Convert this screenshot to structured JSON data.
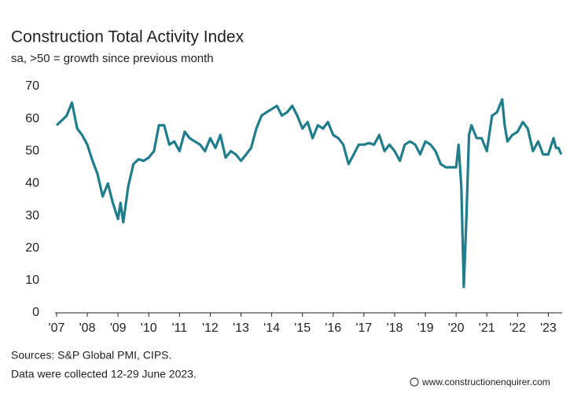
{
  "chart_data": {
    "type": "line",
    "title": "Construction Total Activity Index",
    "subtitle": "sa, >50 = growth since previous month",
    "sources": "Sources: S&P Global PMI, CIPS.",
    "note": "Data were collected 12-29 June 2023.",
    "watermark": "www.constructionenquirer.com",
    "color": "#1f7d8c",
    "grid": false,
    "x": [
      2007.0,
      2007.17,
      2007.33,
      2007.5,
      2007.67,
      2007.83,
      2008.0,
      2008.17,
      2008.33,
      2008.5,
      2008.67,
      2008.83,
      2009.0,
      2009.08,
      2009.17,
      2009.33,
      2009.5,
      2009.67,
      2009.83,
      2010.0,
      2010.17,
      2010.33,
      2010.5,
      2010.67,
      2010.83,
      2011.0,
      2011.17,
      2011.33,
      2011.5,
      2011.67,
      2011.83,
      2012.0,
      2012.17,
      2012.33,
      2012.5,
      2012.67,
      2012.83,
      2013.0,
      2013.17,
      2013.33,
      2013.5,
      2013.67,
      2013.83,
      2014.0,
      2014.17,
      2014.33,
      2014.5,
      2014.67,
      2014.83,
      2015.0,
      2015.17,
      2015.33,
      2015.5,
      2015.67,
      2015.83,
      2016.0,
      2016.17,
      2016.33,
      2016.5,
      2016.67,
      2016.83,
      2017.0,
      2017.17,
      2017.33,
      2017.5,
      2017.67,
      2017.83,
      2018.0,
      2018.17,
      2018.33,
      2018.5,
      2018.67,
      2018.83,
      2019.0,
      2019.17,
      2019.33,
      2019.5,
      2019.67,
      2019.83,
      2020.0,
      2020.08,
      2020.17,
      2020.25,
      2020.33,
      2020.42,
      2020.5,
      2020.67,
      2020.83,
      2021.0,
      2021.17,
      2021.33,
      2021.5,
      2021.58,
      2021.67,
      2021.83,
      2022.0,
      2022.17,
      2022.33,
      2022.5,
      2022.67,
      2022.83,
      2023.0,
      2023.17,
      2023.25,
      2023.33,
      2023.42
    ],
    "values": [
      58,
      59.5,
      61,
      65,
      57,
      55,
      52,
      47,
      43,
      36,
      40,
      34,
      29,
      34,
      28,
      39,
      46,
      47.5,
      47,
      48,
      50,
      58,
      58,
      52,
      53,
      50,
      56,
      54,
      53,
      52,
      50,
      54,
      51,
      55,
      48,
      50,
      49,
      47,
      49,
      51,
      57,
      61,
      62,
      63,
      64,
      61,
      62,
      64,
      61,
      57,
      59,
      54,
      58,
      57,
      59,
      55,
      54,
      52,
      46,
      49,
      52,
      52,
      52.5,
      52,
      55,
      50,
      52,
      50,
      47,
      52,
      53,
      52,
      49,
      53,
      52,
      50,
      46,
      45,
      45,
      45,
      52,
      39,
      8,
      28,
      55,
      58,
      54,
      54,
      50,
      61,
      62,
      66,
      58,
      53,
      55,
      56,
      59,
      57,
      50,
      53,
      49,
      49,
      54,
      51,
      51,
      49
    ],
    "xlim": [
      2006.95,
      2023.45
    ],
    "xticks": [
      {
        "value": 2007,
        "label": "'07"
      },
      {
        "value": 2008,
        "label": "'08"
      },
      {
        "value": 2009,
        "label": "'09"
      },
      {
        "value": 2010,
        "label": "'10"
      },
      {
        "value": 2011,
        "label": "'11"
      },
      {
        "value": 2012,
        "label": "'12"
      },
      {
        "value": 2013,
        "label": "'13"
      },
      {
        "value": 2014,
        "label": "'14"
      },
      {
        "value": 2015,
        "label": "'15"
      },
      {
        "value": 2016,
        "label": "'16"
      },
      {
        "value": 2017,
        "label": "'17"
      },
      {
        "value": 2018,
        "label": "'18"
      },
      {
        "value": 2019,
        "label": "'19"
      },
      {
        "value": 2020,
        "label": "'20"
      },
      {
        "value": 2021,
        "label": "'21"
      },
      {
        "value": 2022,
        "label": "'22"
      },
      {
        "value": 2023,
        "label": "'23"
      }
    ],
    "ylim": [
      0,
      70
    ],
    "yticks": [
      0,
      10,
      20,
      30,
      40,
      50,
      60,
      70
    ]
  }
}
